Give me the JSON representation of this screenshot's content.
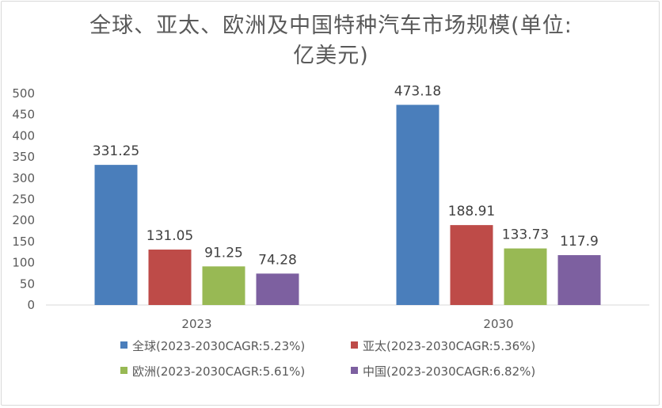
{
  "chart_data": {
    "type": "bar",
    "title": "全球、亚太、欧洲及中国特种汽车市场规模(单位:亿美元)",
    "title_lines": [
      "全球、亚太、欧洲及中国特种汽车市场规模(单位:",
      "亿美元)"
    ],
    "categories": [
      "2023",
      "2030"
    ],
    "series": [
      {
        "name": "全球(2023-2030CAGR:5.23%)",
        "color": "#4a7ebb",
        "values": [
          331.25,
          473.18
        ],
        "labels": [
          "331.25",
          "473.18"
        ]
      },
      {
        "name": "亚太(2023-2030CAGR:5.36%)",
        "color": "#be4b48",
        "values": [
          131.05,
          188.91
        ],
        "labels": [
          "131.05",
          "188.91"
        ]
      },
      {
        "name": "欧洲(2023-2030CAGR:5.61%)",
        "color": "#98b954",
        "values": [
          91.25,
          133.73
        ],
        "labels": [
          "91.25",
          "133.73"
        ]
      },
      {
        "name": "中国(2023-2030CAGR:6.82%)",
        "color": "#7d60a0",
        "values": [
          74.28,
          117.9
        ],
        "labels": [
          "74.28",
          "117.9"
        ]
      }
    ],
    "ylim": [
      0,
      500
    ],
    "yticks": [
      "0",
      "50",
      "100",
      "150",
      "200",
      "250",
      "300",
      "350",
      "400",
      "450",
      "500"
    ],
    "grid": false,
    "legend_position": "bottom"
  }
}
